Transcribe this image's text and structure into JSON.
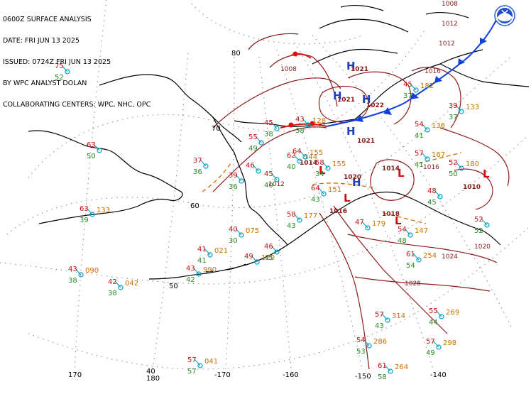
{
  "header": {
    "line1": "0600Z SURFACE ANALYSIS",
    "line2": "DATE: FRI JUN 13 2025",
    "line3": "ISSUED: 0724Z FRI JUN 13 2025",
    "line4": "BY WPC ANALYST DOLAN",
    "line5": "COLLABORATING CENTERS: WPC, NHC, OPC"
  },
  "colors": {
    "land": "#000000",
    "isobar": "#8b1a1a",
    "grid": "#777777",
    "high": "#1f3fbf",
    "low": "#cc1010",
    "cold_front": "#1040e0",
    "warm_front": "#e01010",
    "temperature": "#cc1010",
    "dewpoint": "#2a8a2a",
    "pressure": "#d07000",
    "station": "#00a0c0"
  },
  "grid_labels": {
    "lat": [
      "80",
      "70",
      "60",
      "50",
      "40"
    ],
    "lon": [
      "170",
      "180",
      "-170",
      "-160",
      "-150",
      "-140"
    ]
  },
  "pressure_centers": [
    {
      "type": "H",
      "label": "H",
      "value": "1021"
    },
    {
      "type": "H",
      "label": "H",
      "value": "1021"
    },
    {
      "type": "H",
      "label": "H",
      "value": "1022"
    },
    {
      "type": "H",
      "label": "H",
      "value": "1021"
    },
    {
      "type": "L",
      "label": "L",
      "value": "1014"
    },
    {
      "type": "L",
      "label": "L",
      "value": "1014"
    },
    {
      "type": "L",
      "label": "L",
      "value": "1016"
    },
    {
      "type": "L",
      "label": "L",
      "value": "1018"
    },
    {
      "type": "L",
      "label": "L",
      "value": "1010"
    },
    {
      "type": "H",
      "label": "H",
      "value": "1020"
    }
  ],
  "isobar_labels": [
    "1008",
    "1012",
    "1016",
    "1016",
    "1020",
    "1024",
    "1028",
    "1008",
    "1012",
    "1012"
  ],
  "stations": [
    {
      "t": "75",
      "d": "52",
      "p": ""
    },
    {
      "t": "63",
      "d": "50",
      "p": ""
    },
    {
      "t": "63",
      "d": "39",
      "p": "133"
    },
    {
      "t": "37",
      "d": "36",
      "p": ""
    },
    {
      "t": "39",
      "d": "36",
      "p": ""
    },
    {
      "t": "45",
      "d": "38",
      "p": ""
    },
    {
      "t": "55",
      "d": "49",
      "p": ""
    },
    {
      "t": "45",
      "d": "40",
      "p": ""
    },
    {
      "t": "46",
      "d": "",
      "p": ""
    },
    {
      "t": "40",
      "d": "30",
      "p": "075"
    },
    {
      "t": "41",
      "d": "41",
      "p": "021"
    },
    {
      "t": "43",
      "d": "42",
      "p": "990"
    },
    {
      "t": "49",
      "d": "",
      "p": "120"
    },
    {
      "t": "46",
      "d": "45",
      "p": ""
    },
    {
      "t": "43",
      "d": "38",
      "p": "090"
    },
    {
      "t": "42",
      "d": "38",
      "p": "042"
    },
    {
      "t": "57",
      "d": "57",
      "p": "041"
    },
    {
      "t": "62",
      "d": "40",
      "p": "144"
    },
    {
      "t": "58",
      "d": "34",
      "p": "155"
    },
    {
      "t": "64",
      "d": "43",
      "p": "151"
    },
    {
      "t": "58",
      "d": "43",
      "p": "177"
    },
    {
      "t": "61",
      "d": "54",
      "p": "254"
    },
    {
      "t": "57",
      "d": "43",
      "p": "314"
    },
    {
      "t": "54",
      "d": "53",
      "p": "286"
    },
    {
      "t": "61",
      "d": "58",
      "p": "264"
    },
    {
      "t": "55",
      "d": "44",
      "p": "269"
    },
    {
      "t": "57",
      "d": "49",
      "p": "298"
    },
    {
      "t": "54",
      "d": "41",
      "p": "136"
    },
    {
      "t": "52",
      "d": "50",
      "p": "180"
    },
    {
      "t": "57",
      "d": "41",
      "p": "167"
    },
    {
      "t": "48",
      "d": "45",
      "p": ""
    },
    {
      "t": "52",
      "d": "52",
      "p": ""
    },
    {
      "t": "39",
      "d": "37",
      "p": "133"
    },
    {
      "t": "45",
      "d": "37",
      "p": "182"
    },
    {
      "t": "43",
      "d": "38",
      "p": "128"
    },
    {
      "t": "64",
      "d": "",
      "p": "155"
    },
    {
      "t": "47",
      "d": "",
      "p": "179"
    },
    {
      "t": "54",
      "d": "48",
      "p": "147"
    }
  ]
}
